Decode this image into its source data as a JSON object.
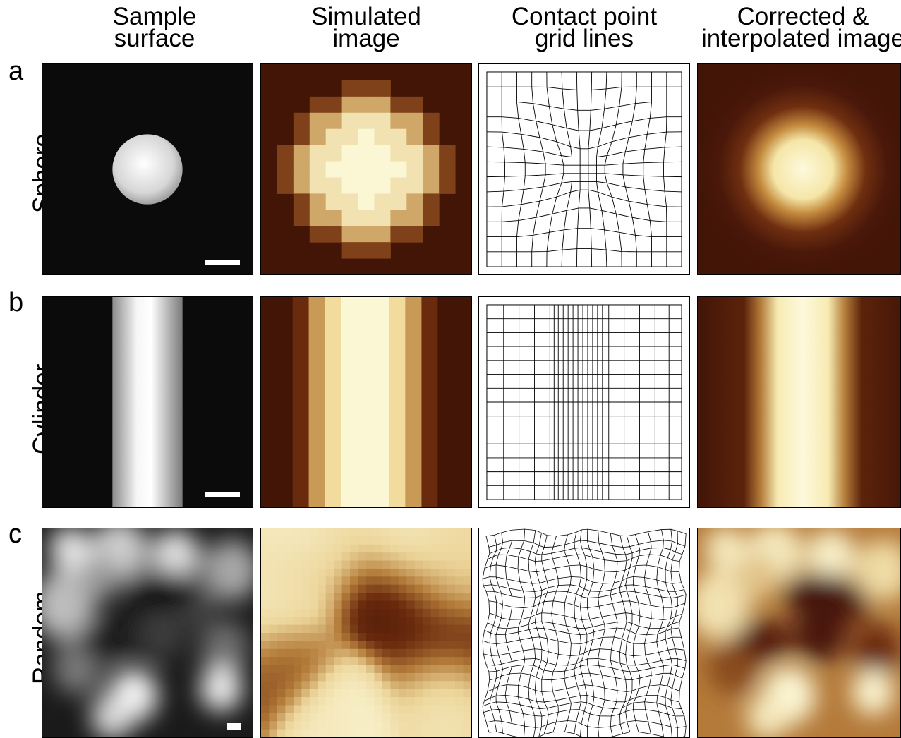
{
  "columns": [
    {
      "line1": "Sample",
      "line2": "surface"
    },
    {
      "line1": "Simulated",
      "line2": "image"
    },
    {
      "line1": "Contact point",
      "line2": "grid lines"
    },
    {
      "line1": "Corrected &",
      "line2": "interpolated image"
    }
  ],
  "rows": [
    {
      "letter": "a",
      "label": "Sphere"
    },
    {
      "letter": "b",
      "label": "Cylinder"
    },
    {
      "letter": "c",
      "label": "Random"
    }
  ],
  "colors": {
    "sample_background": "#0b0b0b",
    "afm_dark": "#421507",
    "afm_mid": "#b07a3a",
    "afm_light": "#fbf6d4",
    "grid_line": "#000000",
    "scale_bar": "#ffffff"
  }
}
